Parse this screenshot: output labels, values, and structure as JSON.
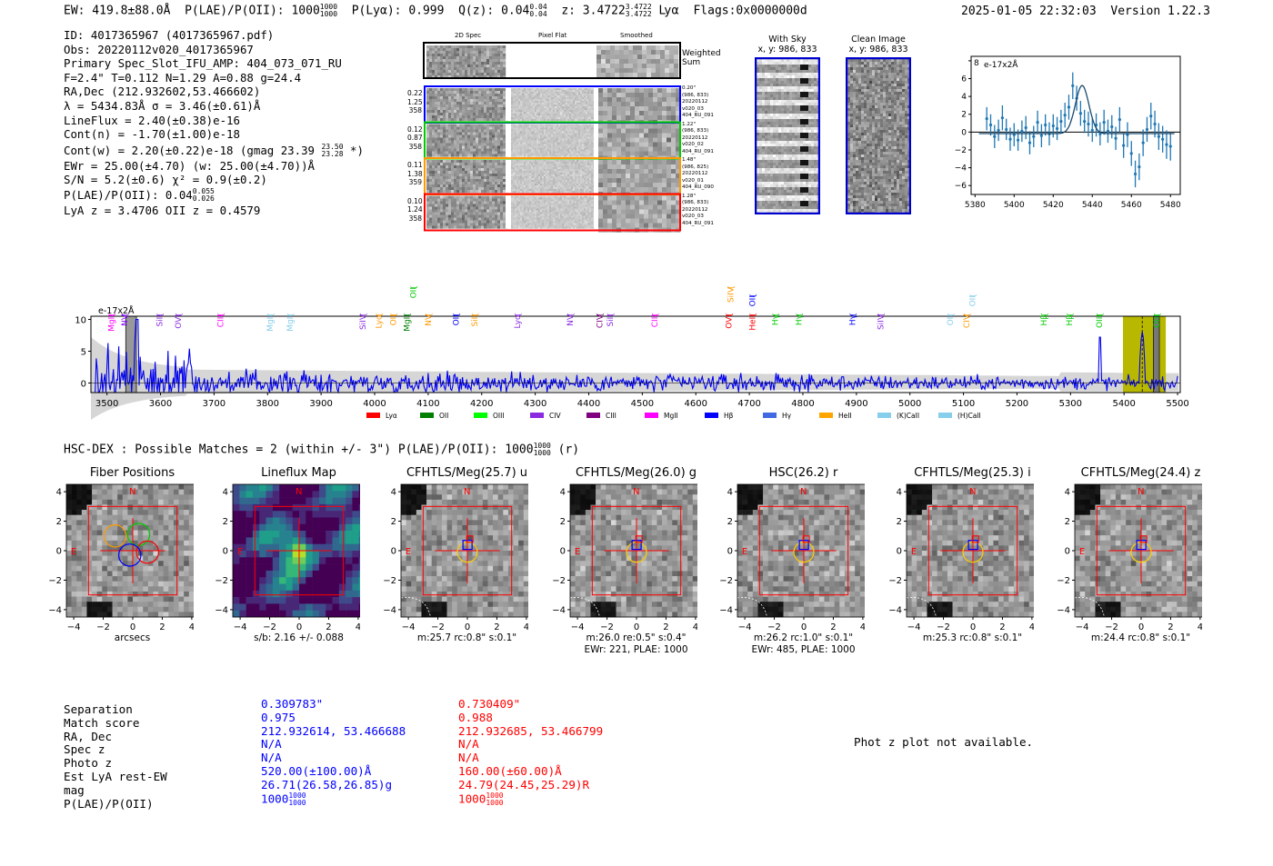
{
  "header": {
    "ew": "EW: 419.8±88.0Å",
    "plae_label": "P(LAE)/P(OII): 1000",
    "plae_hi": "1000",
    "plae_lo": "1000",
    "plya": "P(Lyα): 0.999",
    "qz_label": "Q(z): 0.04",
    "qz_hi": "0.04",
    "qz_lo": "0.04",
    "z_label": "z: 3.4722",
    "z_hi": "3.4722",
    "z_lo": "3.4722",
    "line": "Lyα",
    "flags": "Flags:0x0000000d",
    "timestamp": "2025-01-05 22:32:03",
    "version": "Version 1.22.3"
  },
  "info": {
    "lines": [
      "ID: 4017365967 (4017365967.pdf)",
      "Obs: 20220112v020_4017365967",
      "Primary Spec_Slot_IFU_AMP: 404_073_071_RU",
      "F=2.4\"  T=0.112  N=1.29  A=0.88  g=24.4",
      "RA,Dec (212.932602,53.466602)",
      "λ = 5434.83Å  σ = 3.46(±0.61)Å",
      "LineFlux = 2.40(±0.38)e-16",
      "Cont(n) = -1.70(±1.00)e-18"
    ],
    "contw": "Cont(w) = 2.20(±0.22)e-18 (gmag 23.39",
    "contw_hi": "23.50",
    "contw_lo": "23.28",
    "contw_end": "*)",
    "ewr": "EWr = 25.00(±4.70) (w: 25.00(±4.70))Å",
    "sn": "S/N = 5.2(±0.6)  χ² = 0.9(±0.2)",
    "plae2": "P(LAE)/P(OII): 0.04",
    "plae2_hi": "0.055",
    "plae2_lo": "0.026",
    "lyaz": "LyA z = 3.4706  OII z = 0.4579"
  },
  "cutouts": {
    "col_2d": "2D Spec",
    "col_flat": "Pixel Flat",
    "col_smooth": "Smoothed",
    "weighted": "Weighted",
    "sum": "Sum",
    "rows": [
      {
        "left": [
          "0.22",
          "1.25",
          "358"
        ],
        "right": [
          "0.20\"",
          "(986, 833)",
          "20220112",
          "v020_03",
          "404_RU_091"
        ],
        "color": "#0000ff"
      },
      {
        "left": [
          "0.12",
          "0.87",
          "358"
        ],
        "right": [
          "1.22\"",
          "(986, 833)",
          "20220112",
          "v020_02",
          "404_RU_091"
        ],
        "color": "#00cc00"
      },
      {
        "left": [
          "0.11",
          "1.38",
          "359"
        ],
        "right": [
          "1.48\"",
          "(986, 825)",
          "20220112",
          "v020_01",
          "404_RU_090"
        ],
        "color": "#ff9900"
      },
      {
        "left": [
          "0.10",
          "1.24",
          "358"
        ],
        "right": [
          "1.28\"",
          "(986, 833)",
          "20220112",
          "v020_03",
          "404_RU_091"
        ],
        "color": "#ff0000"
      }
    ]
  },
  "sky": {
    "with_sky": "With Sky",
    "with_sky_xy": "x, y: 986, 833",
    "clean": "Clean Image",
    "clean_xy": "x, y: 986, 833"
  },
  "zoom_plot": {
    "ylabel": "e-17x2Å",
    "x": [
      5386,
      5388,
      5390,
      5392,
      5394,
      5396,
      5398,
      5400,
      5402,
      5404,
      5406,
      5408,
      5410,
      5412,
      5414,
      5416,
      5418,
      5420,
      5422,
      5424,
      5426,
      5428,
      5430,
      5432,
      5434,
      5436,
      5438,
      5440,
      5442,
      5444,
      5446,
      5448,
      5450,
      5452,
      5454,
      5456,
      5458,
      5460,
      5462,
      5464,
      5466,
      5468,
      5470,
      5472,
      5474,
      5476,
      5478,
      5480
    ],
    "y": [
      1.5,
      0.8,
      -0.5,
      0.2,
      1.6,
      0.3,
      -0.8,
      -0.3,
      -0.9,
      0.1,
      0.5,
      -1.2,
      -0.5,
      1.1,
      -0.4,
      0.8,
      -0.2,
      0.7,
      0.4,
      1.2,
      1.9,
      2.8,
      5.2,
      3.8,
      2.1,
      1.2,
      0.9,
      0.2,
      0.8,
      -0.2,
      1.1,
      0.1,
      0.6,
      -0.7,
      1.4,
      -1.5,
      -0.3,
      -2.4,
      -4.7,
      -3.9,
      -1.2,
      0.3,
      1.8,
      0.9,
      -0.5,
      -0.8,
      -1.4,
      -1.6
    ],
    "yerr": [
      1.3,
      1.2,
      1.3,
      1.2,
      1.4,
      1.2,
      1.3,
      1.3,
      1.2,
      1.2,
      1.3,
      1.3,
      1.2,
      1.3,
      1.3,
      1.2,
      1.3,
      1.3,
      1.3,
      1.3,
      1.4,
      1.4,
      1.5,
      1.4,
      1.4,
      1.3,
      1.4,
      1.3,
      1.3,
      1.3,
      1.4,
      1.3,
      1.3,
      1.3,
      1.4,
      1.4,
      1.4,
      1.4,
      1.5,
      1.5,
      1.5,
      1.4,
      1.5,
      1.5,
      1.5,
      1.5,
      1.6,
      1.6
    ],
    "fit_center": 5434.8,
    "fit_sigma": 3.46,
    "fit_amp": 5.4,
    "fit_base": -0.17,
    "xlim": [
      5378,
      5485
    ],
    "ylim": [
      -7,
      8.5
    ],
    "xticks": [
      "5380",
      "5400",
      "5420",
      "5440",
      "5460",
      "5480"
    ],
    "yticks": [
      "8",
      "6",
      "4",
      "2",
      "0",
      "-2",
      "-4",
      "-6"
    ]
  },
  "full_spectrum": {
    "ylabel": "e-17x2Å",
    "xticks": [
      "3500",
      "3600",
      "3700",
      "3800",
      "3900",
      "4000",
      "4100",
      "4200",
      "4300",
      "4400",
      "4500",
      "4600",
      "4700",
      "4800",
      "4900",
      "5000",
      "5100",
      "5200",
      "5300",
      "5400",
      "5500"
    ],
    "yticks": [
      "10",
      "5",
      "0"
    ],
    "xlim": [
      3470,
      5505
    ],
    "ylim": [
      -1.5,
      10.5
    ],
    "line_labels": [
      {
        "name": "MgII",
        "wave": 3508,
        "color": "#ff00ff",
        "row": 2
      },
      {
        "name": "NV",
        "wave": 3533,
        "color": "#8000ff",
        "row": 2
      },
      {
        "name": "SiII",
        "wave": 3598,
        "color": "#8a2be2",
        "row": 2
      },
      {
        "name": "OVI",
        "wave": 3633,
        "color": "#8a2be2",
        "row": 2
      },
      {
        "name": "CIII",
        "wave": 3712,
        "color": "#ff00ff",
        "row": 2
      },
      {
        "name": "MgII",
        "wave": 3805,
        "color": "#87ceeb",
        "row": 2
      },
      {
        "name": "MgII",
        "wave": 3842,
        "color": "#87ceeb",
        "row": 2
      },
      {
        "name": "SiIV",
        "wave": 3978,
        "color": "#8a2be2",
        "row": 2
      },
      {
        "name": "Lyα",
        "wave": 4008,
        "color": "#ff9900",
        "row": 2
      },
      {
        "name": "OII",
        "wave": 4035,
        "color": "#ff9900",
        "row": 2
      },
      {
        "name": "MgII",
        "wave": 4060,
        "color": "#008000",
        "row": 2
      },
      {
        "name": "OII",
        "wave": 4072,
        "color": "#00cc00",
        "row": 0
      },
      {
        "name": "NV",
        "wave": 4100,
        "color": "#ff9900",
        "row": 2
      },
      {
        "name": "OII",
        "wave": 4152,
        "color": "#0000ff",
        "row": 2
      },
      {
        "name": "SiII",
        "wave": 4187,
        "color": "#ff9900",
        "row": 2
      },
      {
        "name": "Lyα",
        "wave": 4267,
        "color": "#8a2be2",
        "row": 2
      },
      {
        "name": "NV",
        "wave": 4365,
        "color": "#8a2be2",
        "row": 2
      },
      {
        "name": "CIV",
        "wave": 4420,
        "color": "#800080",
        "row": 2
      },
      {
        "name": "SiII",
        "wave": 4440,
        "color": "#8a2be2",
        "row": 2
      },
      {
        "name": "CIII",
        "wave": 4523,
        "color": "#ff00ff",
        "row": 2
      },
      {
        "name": "SiIV",
        "wave": 4665,
        "color": "#ff9900",
        "row": 0
      },
      {
        "name": "OVI",
        "wave": 4662,
        "color": "#ff0000",
        "row": 2
      },
      {
        "name": "OII",
        "wave": 4706,
        "color": "#0000ff",
        "row": 1
      },
      {
        "name": "HeII",
        "wave": 4706,
        "color": "#ff0000",
        "row": 2
      },
      {
        "name": "Hγ",
        "wave": 4748,
        "color": "#00cc00",
        "row": 2
      },
      {
        "name": "Hγ",
        "wave": 4792,
        "color": "#00cc00",
        "row": 2
      },
      {
        "name": "Hγ",
        "wave": 4893,
        "color": "#0000ff",
        "row": 2
      },
      {
        "name": "SiIV",
        "wave": 4945,
        "color": "#8a2be2",
        "row": 2
      },
      {
        "name": "OII",
        "wave": 5075,
        "color": "#87ceeb",
        "row": 2
      },
      {
        "name": "CIV",
        "wave": 5106,
        "color": "#ff9900",
        "row": 2
      },
      {
        "name": "OII",
        "wave": 5117,
        "color": "#87ceeb",
        "row": 1
      },
      {
        "name": "Hβ",
        "wave": 5250,
        "color": "#00cc00",
        "row": 2
      },
      {
        "name": "Hβ",
        "wave": 5298,
        "color": "#00cc00",
        "row": 2
      },
      {
        "name": "OIII",
        "wave": 5354,
        "color": "#00cc00",
        "row": 2
      },
      {
        "name": "OIII",
        "wave": 5461,
        "color": "#00cc00",
        "row": 2
      }
    ],
    "legend": [
      {
        "name": "Lyα",
        "color": "#ff0000"
      },
      {
        "name": "OII",
        "color": "#008000"
      },
      {
        "name": "OIII",
        "color": "#00ff00"
      },
      {
        "name": "CIV",
        "color": "#8a2be2"
      },
      {
        "name": "CIII",
        "color": "#800080"
      },
      {
        "name": "MgII",
        "color": "#ff00ff"
      },
      {
        "name": "Hβ",
        "color": "#0000ff"
      },
      {
        "name": "Hγ",
        "color": "#4169e1"
      },
      {
        "name": "HeII",
        "color": "#ffa500"
      },
      {
        "name": "(K)CaII",
        "color": "#87ceeb"
      },
      {
        "name": "(H)CaII",
        "color": "#87ceeb"
      }
    ]
  },
  "hsc": {
    "summary": "HSC-DEX : Possible Matches = 2 (within +/- 3\")  P(LAE)/P(OII): 1000",
    "summary_hi": "1000",
    "summary_lo": "1000",
    "summary_band": "(r)"
  },
  "stamps": [
    {
      "title": "Fiber Positions",
      "line1": "arcsecs",
      "line2": ""
    },
    {
      "title": "Lineflux Map",
      "line1": "s/b: 2.16 +/- 0.088",
      "line2": ""
    },
    {
      "title": "CFHTLS/Meg(25.7) u",
      "line1": "m:25.7 rc:0.8\"  s:0.1\"",
      "line2": ""
    },
    {
      "title": "CFHTLS/Meg(26.0) g",
      "line1": "m:26.0  re:0.5\"  s:0.4\"",
      "line2": "EWr: 221, PLAE: 1000"
    },
    {
      "title": "HSC(26.2) r",
      "line1": "m:26.2 rc:1.0\"  s:0.1\"",
      "line2": "EWr: 485, PLAE: 1000"
    },
    {
      "title": "CFHTLS/Meg(25.3) i",
      "line1": "m:25.3 rc:0.8\"  s:0.1\"",
      "line2": ""
    },
    {
      "title": "CFHTLS/Meg(24.4) z",
      "line1": "m:24.4 rc:0.8\"  s:0.1\"",
      "line2": ""
    }
  ],
  "stamp_axis": {
    "ticks": [
      "4",
      "2",
      "0",
      "−2",
      "−4"
    ],
    "xticks": [
      "−4",
      "−2",
      "0",
      "2",
      "4"
    ],
    "n": "N",
    "e": "E"
  },
  "matches": {
    "labels": [
      "Separation",
      "Match score",
      "RA, Dec",
      "Spec z",
      "Photo z",
      "Est LyA rest-EW",
      "mag",
      "P(LAE)/P(OII)"
    ],
    "blue": [
      "0.309783\"",
      "0.975",
      "212.932614, 53.466688",
      "N/A",
      "N/A",
      "520.00(±100.00)Å",
      "26.71(26.58,26.85)g",
      "1000"
    ],
    "red": [
      "0.730409\"",
      "0.988",
      "212.932685, 53.466799",
      "N/A",
      "N/A",
      "160.00(±60.00)Å",
      "24.79(24.45,25.29)R",
      "1000"
    ],
    "frac_hi": "1000",
    "frac_lo": "1000"
  },
  "photz": "Phot z plot not available."
}
